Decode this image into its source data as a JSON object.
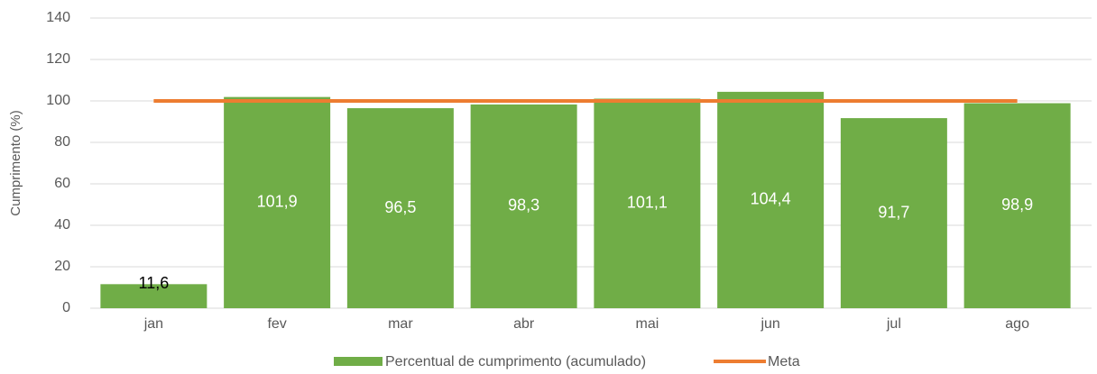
{
  "chart_data": {
    "type": "bar_line",
    "y_label": "Cumprimento (%)",
    "categories": [
      "jan",
      "fev",
      "mar",
      "abr",
      "mai",
      "jun",
      "jul",
      "ago"
    ],
    "series": [
      {
        "name": "Percentual de cumprimento (acumulado)",
        "type": "bar",
        "color": "#70ad47",
        "values": [
          11.6,
          101.9,
          96.5,
          98.3,
          101.1,
          104.4,
          91.7,
          98.9
        ],
        "value_labels": [
          "11,6",
          "101,9",
          "96,5",
          "98,3",
          "101,1",
          "104,4",
          "91,7",
          "98,9"
        ]
      },
      {
        "name": "Meta",
        "type": "line",
        "color": "#ed7d31",
        "values": [
          100,
          100,
          100,
          100,
          100,
          100,
          100,
          100
        ]
      }
    ],
    "ylim": [
      0,
      140
    ],
    "yticks": [
      0,
      20,
      40,
      60,
      80,
      100,
      120,
      140
    ],
    "grid": true,
    "legend": "bottom"
  }
}
